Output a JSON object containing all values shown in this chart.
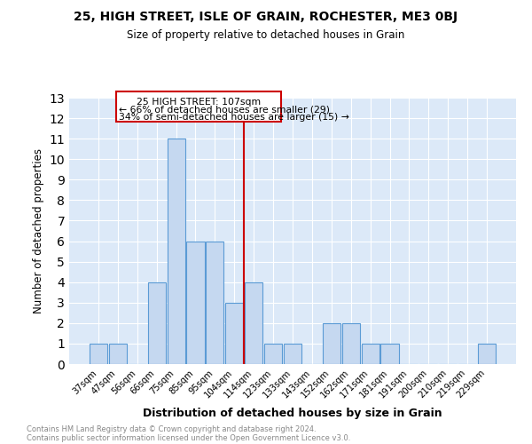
{
  "title1": "25, HIGH STREET, ISLE OF GRAIN, ROCHESTER, ME3 0BJ",
  "title2": "Size of property relative to detached houses in Grain",
  "xlabel": "Distribution of detached houses by size in Grain",
  "ylabel": "Number of detached properties",
  "categories": [
    "37sqm",
    "47sqm",
    "56sqm",
    "66sqm",
    "75sqm",
    "85sqm",
    "95sqm",
    "104sqm",
    "114sqm",
    "123sqm",
    "133sqm",
    "143sqm",
    "152sqm",
    "162sqm",
    "171sqm",
    "181sqm",
    "191sqm",
    "200sqm",
    "210sqm",
    "219sqm",
    "229sqm"
  ],
  "values": [
    1,
    1,
    0,
    4,
    11,
    6,
    6,
    3,
    4,
    1,
    1,
    0,
    2,
    2,
    1,
    1,
    0,
    0,
    0,
    0,
    1
  ],
  "bar_color": "#c5d8f0",
  "bar_edge_color": "#5b9bd5",
  "vline_x": 7.5,
  "vline_color": "#cc0000",
  "annotation_lines": [
    "25 HIGH STREET: 107sqm",
    "← 66% of detached houses are smaller (29)",
    "34% of semi-detached houses are larger (15) →"
  ],
  "ylim": [
    0,
    13
  ],
  "yticks": [
    0,
    1,
    2,
    3,
    4,
    5,
    6,
    7,
    8,
    9,
    10,
    11,
    12,
    13
  ],
  "bg_color": "#dce9f8",
  "grid_color": "#ffffff",
  "footer1": "Contains HM Land Registry data © Crown copyright and database right 2024.",
  "footer2": "Contains public sector information licensed under the Open Government Licence v3.0."
}
